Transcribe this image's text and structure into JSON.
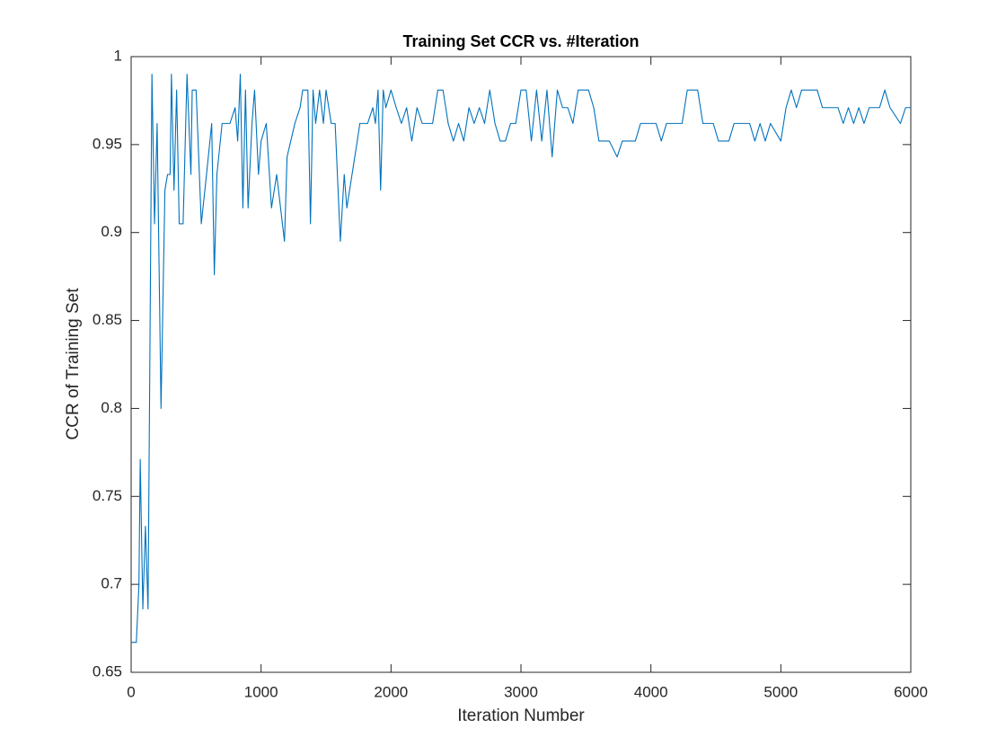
{
  "chart_data": {
    "type": "line",
    "title": "Training Set CCR vs. #Iteration",
    "xlabel": "Iteration Number",
    "ylabel": "CCR of Training Set",
    "xlim": [
      0,
      6000
    ],
    "xticks": [
      0,
      1000,
      2000,
      3000,
      4000,
      5000,
      6000
    ],
    "ylim": [
      0.65,
      1
    ],
    "yticks": [
      0.65,
      0.7,
      0.75,
      0.8,
      0.85,
      0.9,
      0.95,
      1
    ],
    "grid": false,
    "series": [
      {
        "name": "CCR",
        "color": "#0072bd",
        "x": [
          0,
          40,
          60,
          70,
          90,
          110,
          130,
          160,
          180,
          200,
          230,
          260,
          280,
          300,
          310,
          330,
          350,
          370,
          400,
          420,
          430,
          460,
          470,
          500,
          540,
          580,
          620,
          640,
          660,
          700,
          760,
          800,
          820,
          840,
          860,
          880,
          900,
          930,
          950,
          980,
          1000,
          1040,
          1080,
          1120,
          1180,
          1200,
          1260,
          1300,
          1320,
          1360,
          1380,
          1400,
          1420,
          1450,
          1480,
          1500,
          1540,
          1570,
          1610,
          1640,
          1660,
          1700,
          1740,
          1760,
          1820,
          1860,
          1880,
          1900,
          1920,
          1940,
          1960,
          2000,
          2040,
          2080,
          2120,
          2160,
          2200,
          2240,
          2280,
          2320,
          2360,
          2400,
          2440,
          2480,
          2520,
          2560,
          2600,
          2640,
          2680,
          2720,
          2760,
          2800,
          2840,
          2880,
          2920,
          2960,
          3000,
          3040,
          3080,
          3120,
          3160,
          3200,
          3240,
          3280,
          3320,
          3360,
          3400,
          3440,
          3520,
          3560,
          3600,
          3680,
          3740,
          3780,
          3880,
          3920,
          4040,
          4080,
          4120,
          4240,
          4280,
          4360,
          4400,
          4480,
          4520,
          4600,
          4640,
          4760,
          4800,
          4840,
          4880,
          4920,
          5000,
          5040,
          5080,
          5120,
          5160,
          5280,
          5320,
          5440,
          5480,
          5520,
          5560,
          5600,
          5640,
          5680,
          5760,
          5800,
          5840,
          5920,
          5960,
          6000
        ],
        "values": [
          0.667,
          0.667,
          0.7,
          0.771,
          0.686,
          0.733,
          0.686,
          0.99,
          0.905,
          0.962,
          0.8,
          0.924,
          0.933,
          0.933,
          0.99,
          0.924,
          0.981,
          0.905,
          0.905,
          0.962,
          0.99,
          0.933,
          0.981,
          0.981,
          0.905,
          0.933,
          0.962,
          0.876,
          0.933,
          0.962,
          0.962,
          0.971,
          0.952,
          0.99,
          0.914,
          0.981,
          0.914,
          0.962,
          0.981,
          0.933,
          0.952,
          0.962,
          0.914,
          0.933,
          0.895,
          0.943,
          0.962,
          0.971,
          0.981,
          0.981,
          0.905,
          0.981,
          0.962,
          0.981,
          0.962,
          0.981,
          0.962,
          0.962,
          0.895,
          0.933,
          0.914,
          0.933,
          0.952,
          0.962,
          0.962,
          0.971,
          0.962,
          0.981,
          0.924,
          0.981,
          0.971,
          0.981,
          0.971,
          0.962,
          0.971,
          0.952,
          0.971,
          0.962,
          0.962,
          0.962,
          0.981,
          0.981,
          0.962,
          0.952,
          0.962,
          0.952,
          0.971,
          0.962,
          0.971,
          0.962,
          0.981,
          0.962,
          0.952,
          0.952,
          0.962,
          0.962,
          0.981,
          0.981,
          0.952,
          0.981,
          0.952,
          0.981,
          0.943,
          0.981,
          0.971,
          0.971,
          0.962,
          0.981,
          0.981,
          0.971,
          0.952,
          0.952,
          0.943,
          0.952,
          0.952,
          0.962,
          0.962,
          0.952,
          0.962,
          0.962,
          0.981,
          0.981,
          0.962,
          0.962,
          0.952,
          0.952,
          0.962,
          0.962,
          0.952,
          0.962,
          0.952,
          0.962,
          0.952,
          0.971,
          0.981,
          0.971,
          0.981,
          0.981,
          0.971,
          0.971,
          0.962,
          0.971,
          0.962,
          0.971,
          0.962,
          0.971,
          0.971,
          0.981,
          0.971,
          0.962,
          0.971,
          0.971
        ]
      }
    ]
  }
}
